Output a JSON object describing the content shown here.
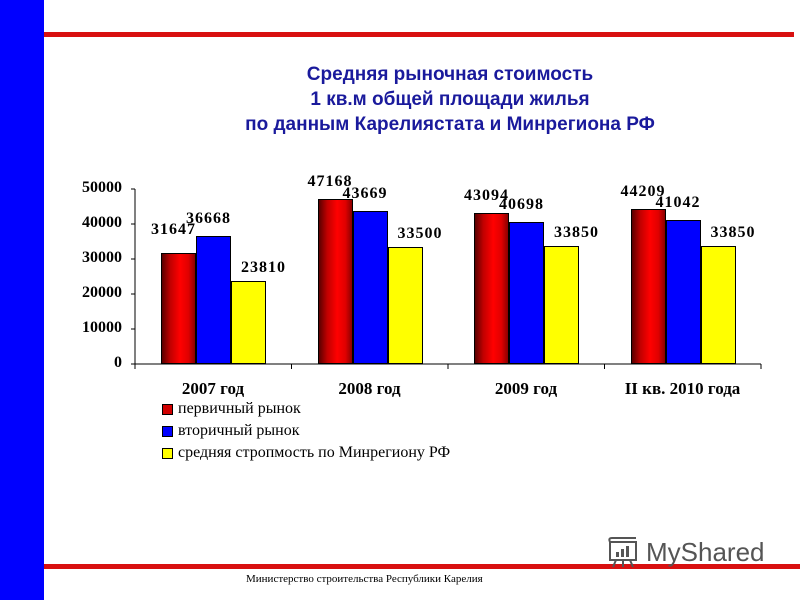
{
  "slide": {
    "title_lines": [
      "Средняя рыночная стоимость",
      "1 кв.м общей площади жилья",
      "по данным Карелиястата и Минрегиона РФ"
    ],
    "footer": "Министерство строительства  Республики Карелия",
    "watermark": "MyShared",
    "colors": {
      "left_bar": "#0000ff",
      "rule_lines": "#d81010",
      "title": "#1a1a9c"
    }
  },
  "chart_data": {
    "type": "bar",
    "title": "Средняя рыночная стоимость 1 кв.м общей площади жилья по данным Карелиястата и Минрегиона РФ",
    "xlabel": "",
    "ylabel": "",
    "ylim": [
      0,
      50000
    ],
    "yticks": [
      "50000",
      "40000",
      "30000",
      "20000",
      "10000",
      "0"
    ],
    "grid": false,
    "legend_position": "bottom-left",
    "categories": [
      "2007 год",
      "2008 год",
      "2009 год",
      "II кв. 2010 года"
    ],
    "series": [
      {
        "name": "первичный рынок",
        "color": "#e00000",
        "values": [
          31647,
          47168,
          43094,
          44209
        ],
        "labels": [
          "31647",
          "47168",
          "43094",
          "44209"
        ]
      },
      {
        "name": "вторичный рынок",
        "color": "#0000ff",
        "values": [
          36668,
          43669,
          40698,
          41042
        ],
        "labels": [
          "36668",
          "43669",
          "40698",
          "41042"
        ]
      },
      {
        "name": "средняя стропмость по Минрегиону РФ",
        "color": "#ffff00",
        "values": [
          23810,
          33500,
          33850,
          33850
        ],
        "labels": [
          "23810",
          "33500",
          "33850",
          "33850"
        ]
      }
    ]
  }
}
